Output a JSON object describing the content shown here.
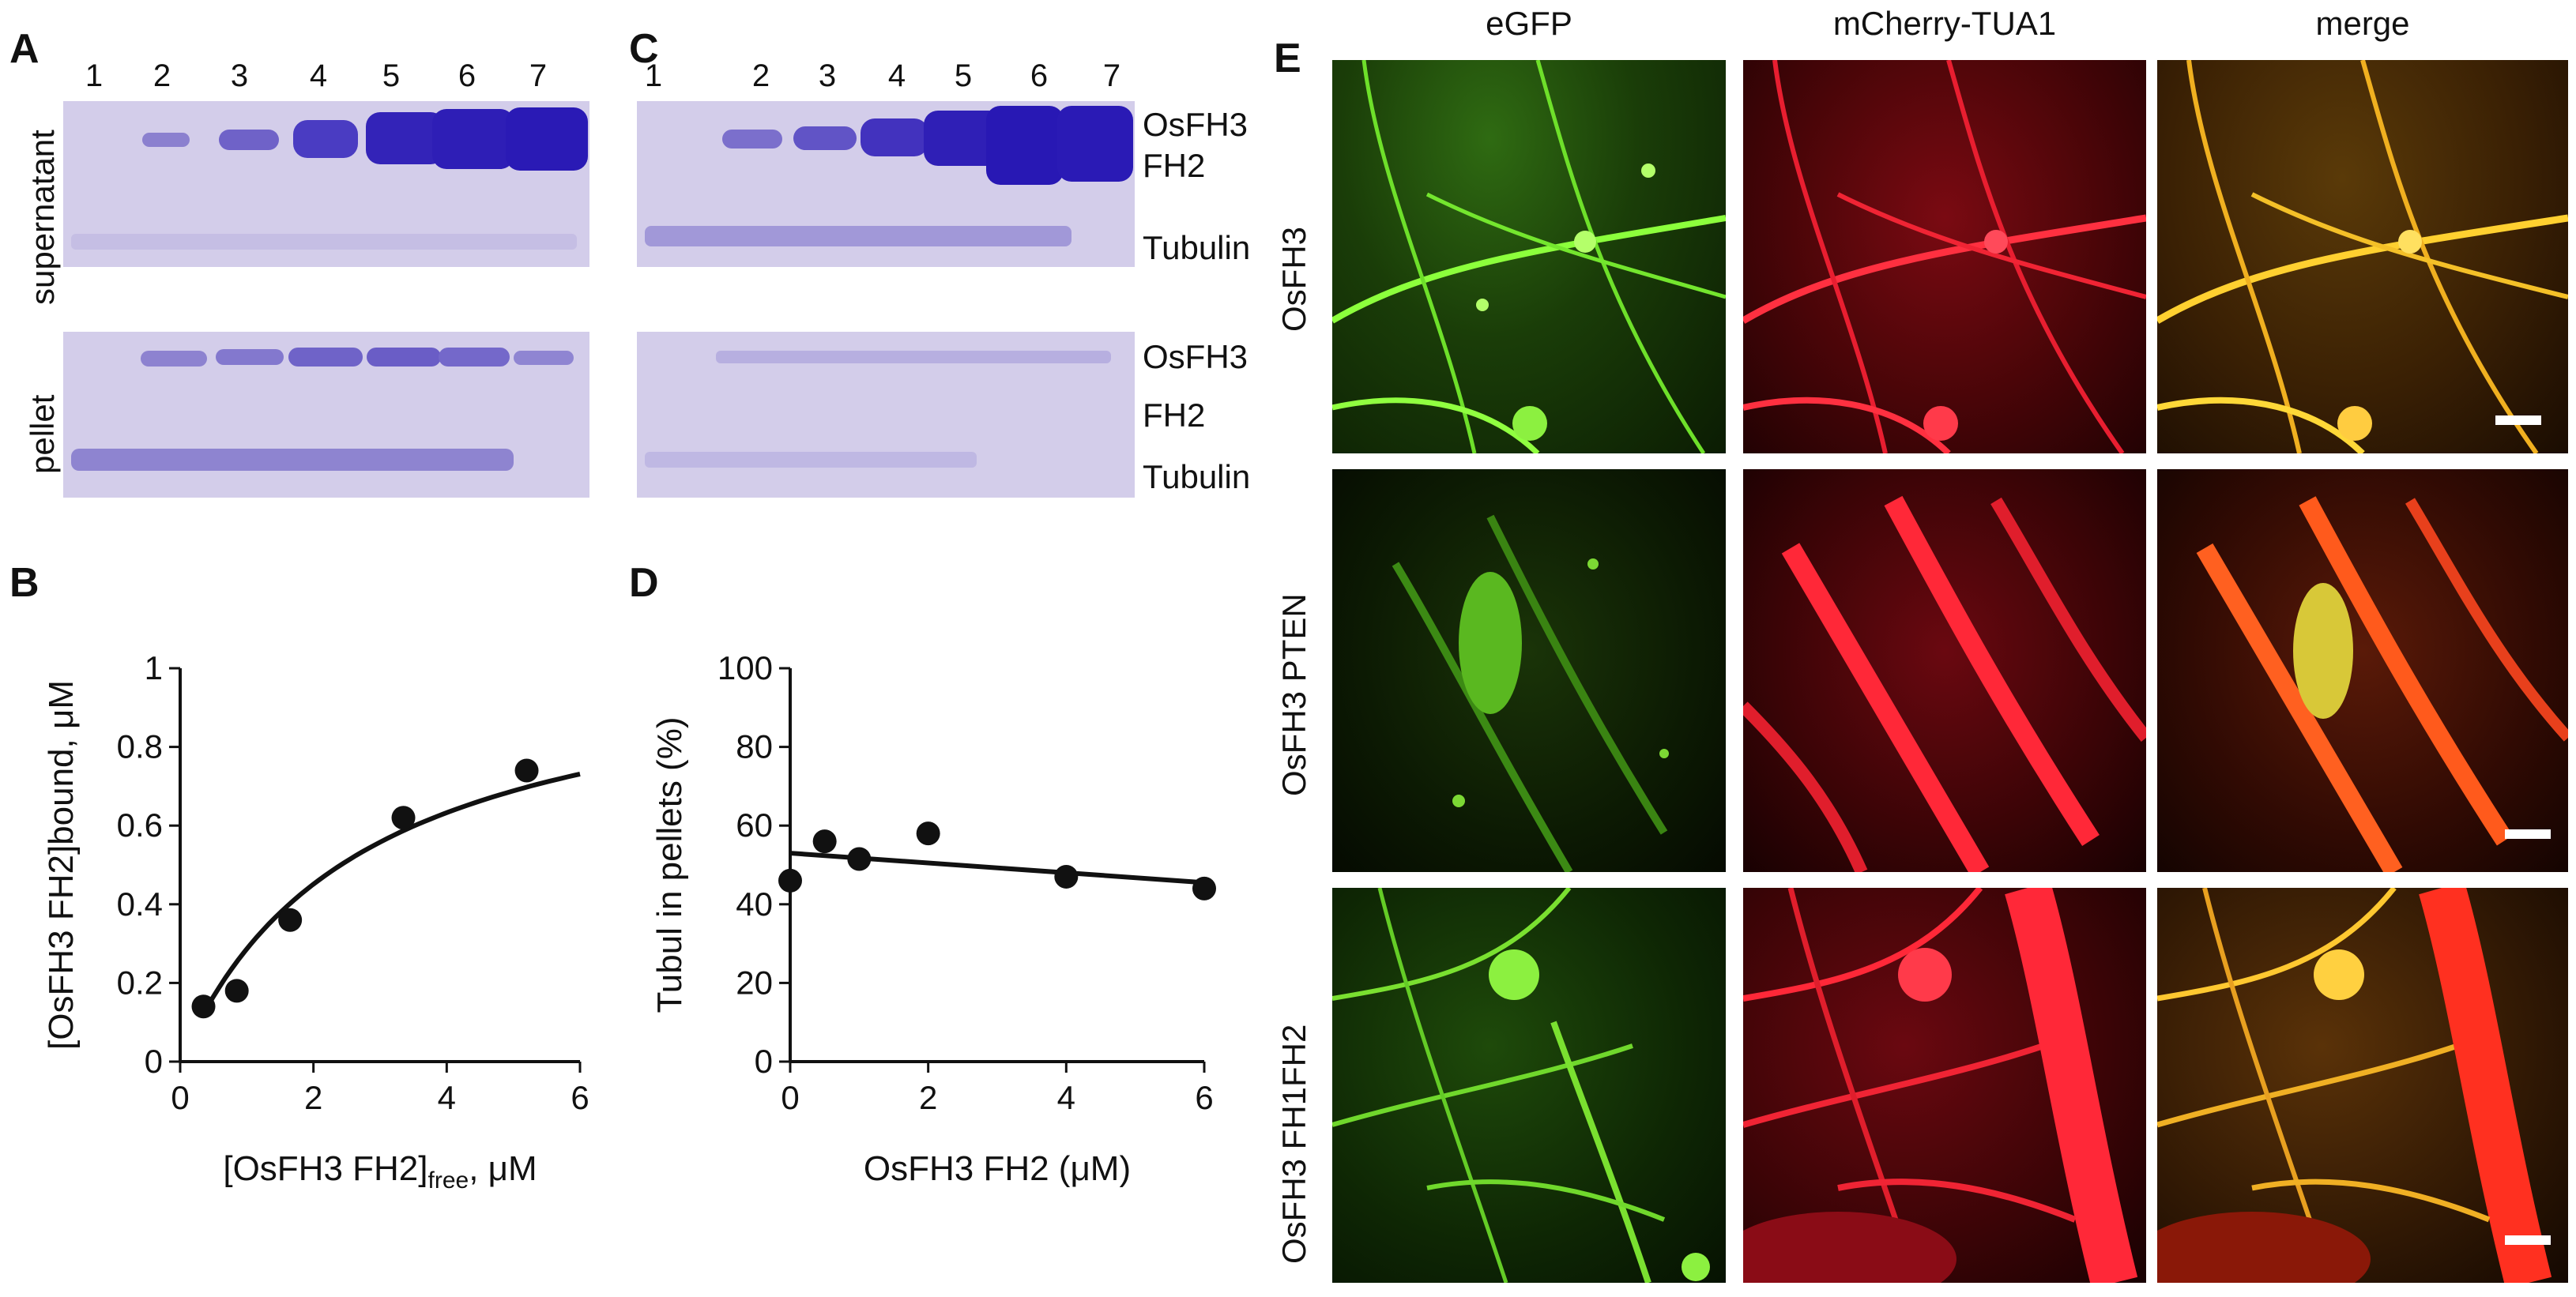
{
  "panels": {
    "A": "A",
    "B": "B",
    "C": "C",
    "D": "D",
    "E": "E"
  },
  "gels": {
    "lanes": [
      "1",
      "2",
      "3",
      "4",
      "5",
      "6",
      "7"
    ],
    "row_labels": {
      "top": "supernatant",
      "bottom": "pellet"
    },
    "band_labels": {
      "osfh3": "OsFH3",
      "fh2": "FH2",
      "tubulin": "Tubulin"
    }
  },
  "chart_data": [
    {
      "type": "scatter",
      "panel": "B",
      "xlabel_main": "[OsFH3 FH2]",
      "xlabel_sub": "free",
      "xlabel_unit": ", μM",
      "ylabel": "[OsFH3 FH2]bound, μM",
      "xlim": [
        0,
        6
      ],
      "ylim": [
        0,
        1
      ],
      "xticks": [
        0,
        2,
        4,
        6
      ],
      "yticks": [
        0,
        0.2,
        0.4,
        0.6,
        0.8,
        1
      ],
      "ytick_labels": [
        "0",
        "0.2",
        "0.4",
        "0.6",
        "0.8",
        "1"
      ],
      "points": [
        [
          0.35,
          0.14
        ],
        [
          0.85,
          0.18
        ],
        [
          1.65,
          0.36
        ],
        [
          3.35,
          0.62
        ],
        [
          5.2,
          0.74
        ]
      ],
      "fit": {
        "model": "hyperbolic",
        "bmax": 1.06,
        "kd": 2.7,
        "x_from": 0.4,
        "x_to": 6
      }
    },
    {
      "type": "scatter",
      "panel": "D",
      "xlabel": "OsFH3 FH2 (μM)",
      "ylabel": "Tubul in pellets (%)",
      "xlim": [
        0,
        6
      ],
      "ylim": [
        0,
        100
      ],
      "xticks": [
        0,
        2,
        4,
        6
      ],
      "yticks": [
        0,
        20,
        40,
        60,
        80,
        100
      ],
      "ytick_labels": [
        "0",
        "20",
        "40",
        "60",
        "80",
        "100"
      ],
      "points": [
        [
          0,
          46
        ],
        [
          0.5,
          56
        ],
        [
          1,
          51.5
        ],
        [
          2,
          58
        ],
        [
          4,
          47
        ],
        [
          6,
          44
        ]
      ],
      "fit": {
        "model": "linear",
        "x0": 0,
        "y0": 53,
        "x1": 6,
        "y1": 45.5
      }
    }
  ],
  "microscopy": {
    "columns": [
      "eGFP",
      "mCherry-TUA1",
      "merge"
    ],
    "rows": [
      "OsFH3",
      "OsFH3 PTEN",
      "OsFH3 FH1FH2"
    ]
  }
}
